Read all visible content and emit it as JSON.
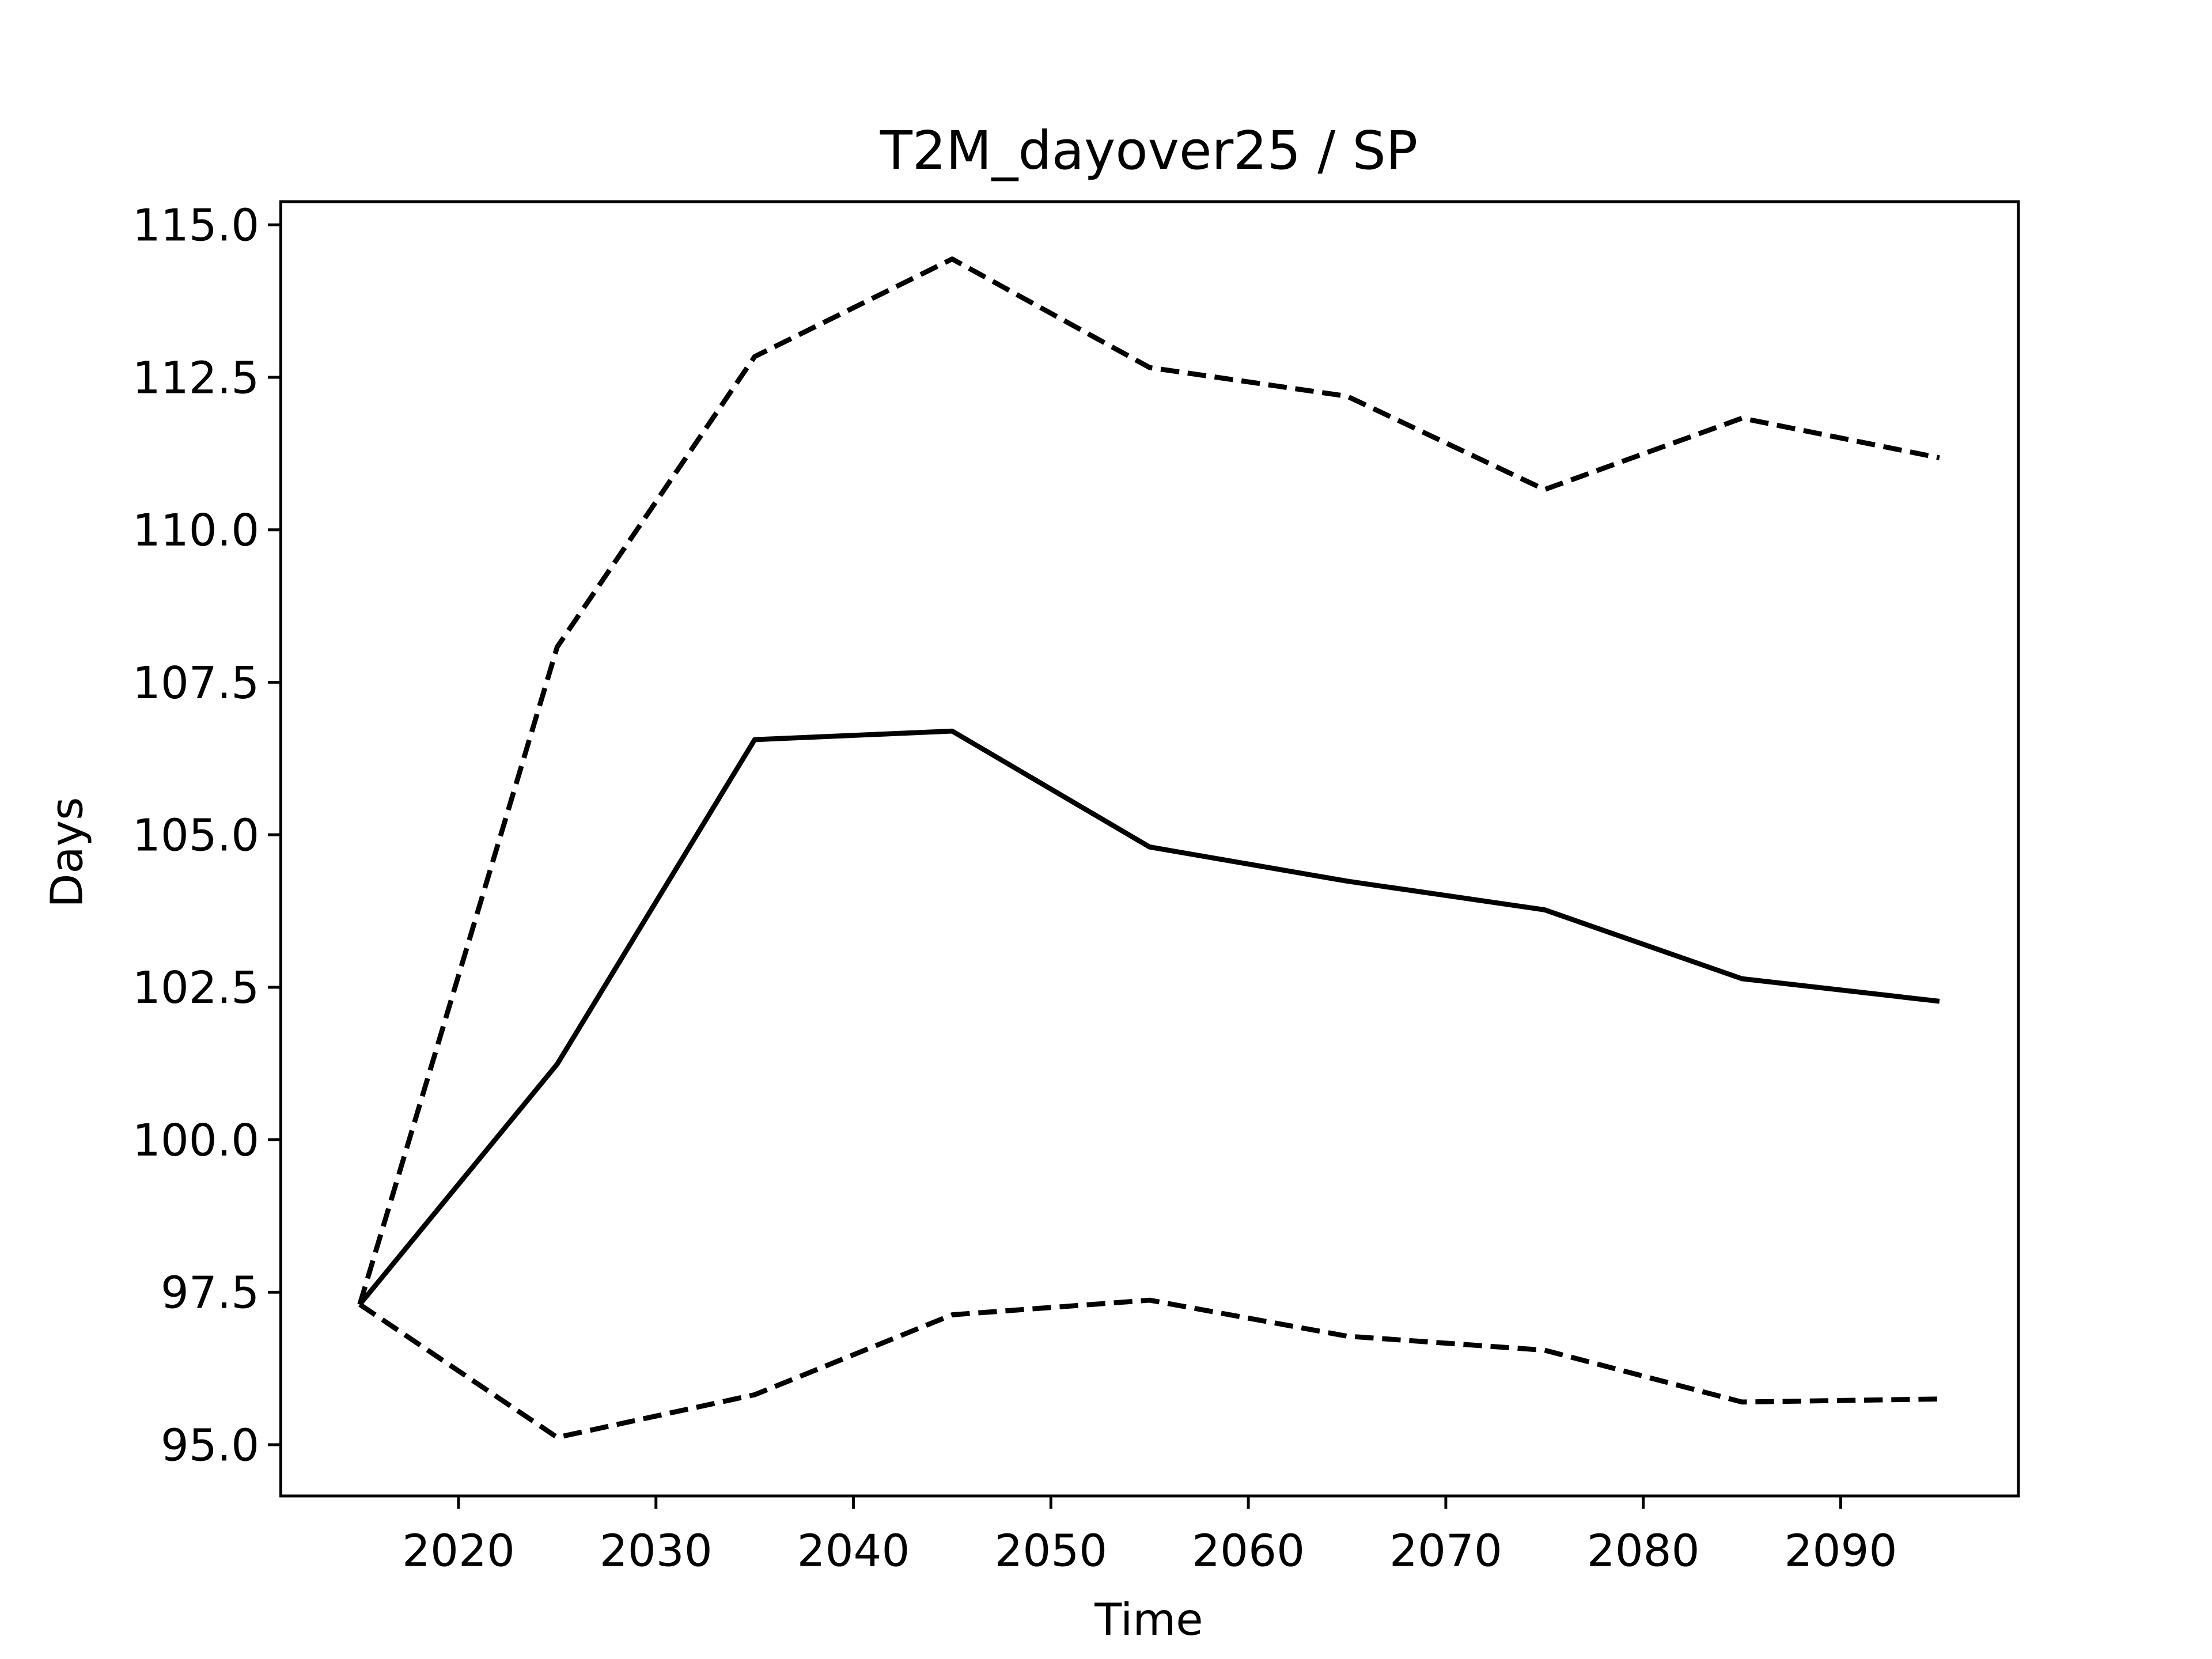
{
  "chart_data": {
    "type": "line",
    "title": "T2M_dayover25 / SP",
    "xlabel": "Time",
    "ylabel": "Days",
    "x": [
      2015,
      2025,
      2035,
      2045,
      2055,
      2065,
      2075,
      2085,
      2095
    ],
    "series": [
      {
        "color": "#000000",
        "linestyle": "solid",
        "values": [
          97.3,
          101.24,
          106.56,
          106.7,
          104.8,
          104.24,
          103.77,
          102.64,
          102.27
        ]
      },
      {
        "color": "#000000",
        "linestyle": "dashed",
        "values": [
          97.3,
          108.08,
          112.84,
          114.44,
          112.66,
          112.19,
          110.66,
          111.83,
          111.18
        ]
      },
      {
        "color": "#000000",
        "linestyle": "dashed",
        "values": [
          97.3,
          95.12,
          95.82,
          97.13,
          97.37,
          96.78,
          96.55,
          95.7,
          95.75
        ]
      }
    ],
    "xlim": [
      2011,
      2099
    ],
    "ylim": [
      94.16,
      115.38
    ],
    "xticks": [
      2020,
      2030,
      2040,
      2050,
      2060,
      2070,
      2080,
      2090
    ],
    "yticks": [
      {
        "value": 95,
        "label": "95.0"
      },
      {
        "value": 97.5,
        "label": "97.5"
      },
      {
        "value": 100,
        "label": "100.0"
      },
      {
        "value": 102.5,
        "label": "102.5"
      },
      {
        "value": 105,
        "label": "105.0"
      },
      {
        "value": 107.5,
        "label": "107.5"
      },
      {
        "value": 110,
        "label": "110.0"
      },
      {
        "value": 112.5,
        "label": "112.5"
      },
      {
        "value": 115,
        "label": "115.0"
      }
    ],
    "grid": false
  }
}
